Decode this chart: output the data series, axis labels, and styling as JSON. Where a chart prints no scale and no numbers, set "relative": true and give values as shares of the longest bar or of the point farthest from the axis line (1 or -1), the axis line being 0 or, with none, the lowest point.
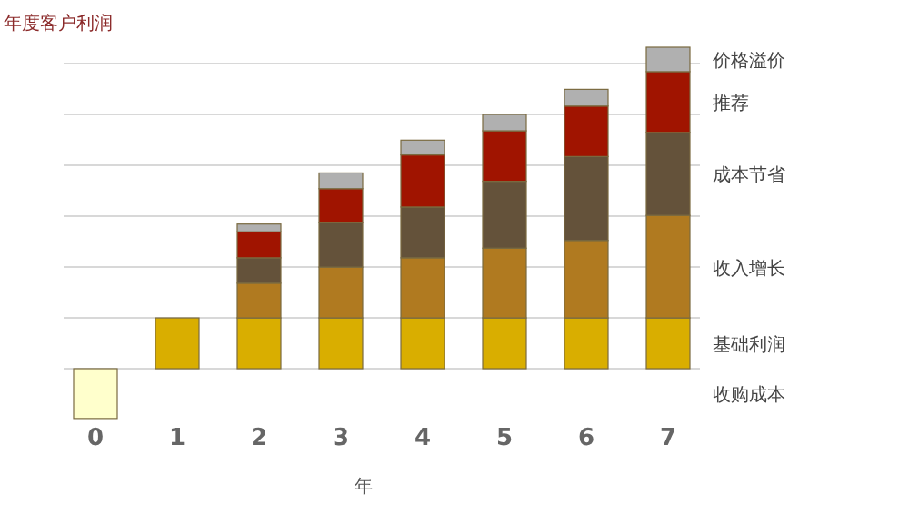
{
  "chart_data": {
    "type": "bar",
    "stacked": true,
    "relative": true,
    "title": "年度客户利润",
    "xlabel": "年",
    "grid": "y",
    "legend": "right",
    "categories": [
      "0",
      "1",
      "2",
      "3",
      "4",
      "5",
      "6",
      "7"
    ],
    "series": [
      {
        "name": "收购成本",
        "color": "#ffffcc",
        "values": [
          -0.155,
          null,
          null,
          null,
          null,
          null,
          null,
          null
        ]
      },
      {
        "name": "基础利润",
        "color": "#d9ae00",
        "values": [
          null,
          0.158,
          0.158,
          0.158,
          0.158,
          0.158,
          0.158,
          0.158
        ]
      },
      {
        "name": "收入增长",
        "color": "#b07a20",
        "values": [
          null,
          null,
          0.108,
          0.158,
          0.187,
          0.217,
          0.241,
          0.319
        ]
      },
      {
        "name": "成本节省",
        "color": "#64523a",
        "values": [
          null,
          null,
          0.079,
          0.138,
          0.158,
          0.208,
          0.261,
          0.258
        ]
      },
      {
        "name": "推荐",
        "color": "#a01400",
        "values": [
          null,
          null,
          0.081,
          0.106,
          0.162,
          0.157,
          0.157,
          0.189
        ]
      },
      {
        "name": "价格溢价",
        "color": "#b0b0b0",
        "values": [
          null,
          null,
          0.024,
          0.049,
          0.046,
          0.051,
          0.052,
          0.076
        ]
      }
    ]
  }
}
